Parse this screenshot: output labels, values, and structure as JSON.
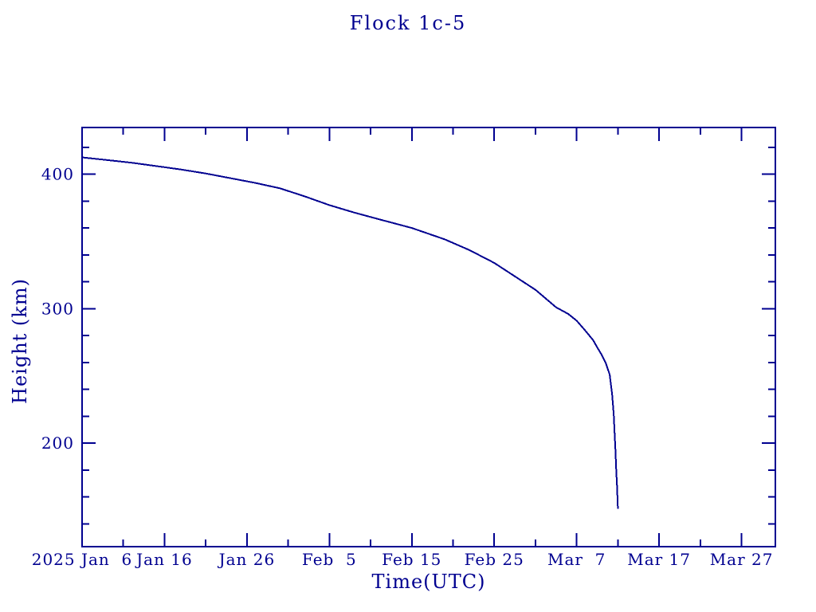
{
  "colors": {
    "ink": "#000090",
    "background": "#ffffff"
  },
  "chart_data": {
    "type": "line",
    "title": "Flock 1c-5",
    "xlabel": "Time(UTC)",
    "ylabel": "Height (km)",
    "x_unit": "days since 2025 Jan 6 00:00 UTC",
    "x_days": 84.1,
    "ylim": [
      123,
      434.7
    ],
    "grid": false,
    "legend": false,
    "x_ticks": {
      "major": [
        {
          "day": 0,
          "label": "2025 Jan  6"
        },
        {
          "day": 10,
          "label": "Jan 16"
        },
        {
          "day": 20,
          "label": "Jan 26"
        },
        {
          "day": 30,
          "label": "Feb  5"
        },
        {
          "day": 40,
          "label": "Feb 15"
        },
        {
          "day": 50,
          "label": "Feb 25"
        },
        {
          "day": 60,
          "label": "Mar  7"
        },
        {
          "day": 70,
          "label": "Mar 17"
        },
        {
          "day": 80,
          "label": "Mar 27"
        }
      ],
      "minor_days": [
        5,
        15,
        25,
        35,
        45,
        55,
        65,
        75
      ]
    },
    "y_ticks": {
      "major": [
        {
          "value": 200,
          "label": "200"
        },
        {
          "value": 300,
          "label": "300"
        },
        {
          "value": 400,
          "label": "400"
        }
      ],
      "minor_values": [
        140,
        160,
        180,
        220,
        240,
        260,
        280,
        320,
        340,
        360,
        380,
        420
      ]
    },
    "series": [
      {
        "label": "height_km",
        "points": [
          [
            0,
            412.5
          ],
          [
            3,
            410.5
          ],
          [
            6,
            408.5
          ],
          [
            9,
            406
          ],
          [
            12,
            403.5
          ],
          [
            15,
            400.5
          ],
          [
            18,
            397
          ],
          [
            21,
            393.5
          ],
          [
            24,
            389.5
          ],
          [
            27,
            383.5
          ],
          [
            30,
            377
          ],
          [
            33,
            371.5
          ],
          [
            36,
            366.5
          ],
          [
            40,
            360
          ],
          [
            44,
            351.5
          ],
          [
            47,
            343.5
          ],
          [
            50,
            334
          ],
          [
            52.5,
            324
          ],
          [
            55,
            314
          ],
          [
            57.5,
            301
          ],
          [
            59,
            296
          ],
          [
            60,
            291
          ],
          [
            61,
            284
          ],
          [
            62,
            276.5
          ],
          [
            62.5,
            271
          ],
          [
            63,
            266
          ],
          [
            63.5,
            260
          ],
          [
            64,
            251
          ],
          [
            64.3,
            236
          ],
          [
            64.5,
            221
          ],
          [
            64.6,
            207
          ],
          [
            64.7,
            195
          ],
          [
            64.8,
            180
          ],
          [
            64.9,
            167
          ],
          [
            65,
            151
          ]
        ]
      }
    ]
  }
}
